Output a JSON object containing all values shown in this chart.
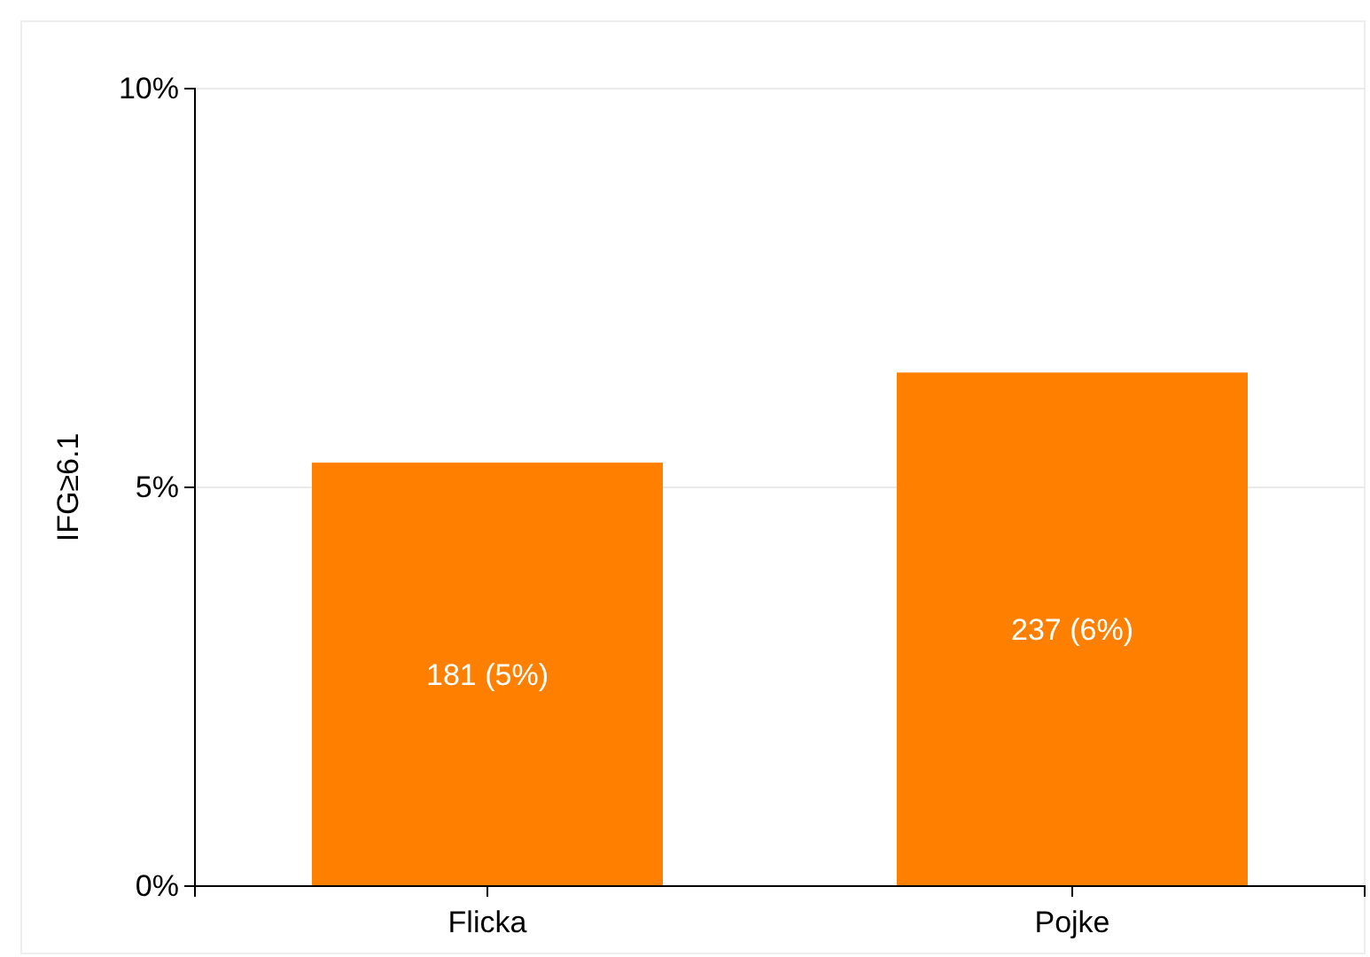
{
  "chart_data": {
    "type": "bar",
    "ylabel": "IFG≥6.1",
    "categories": [
      "Flicka",
      "Pojke"
    ],
    "values": [
      5.31,
      6.44
    ],
    "value_labels": [
      "181 (5%)",
      "237 (6%)"
    ],
    "color": "#ff8000",
    "ylim": [
      0,
      10
    ],
    "yticks": [
      {
        "value": 0,
        "label": "0%"
      },
      {
        "value": 5,
        "label": "5%"
      },
      {
        "value": 10,
        "label": "10%"
      }
    ],
    "grid": "y"
  }
}
